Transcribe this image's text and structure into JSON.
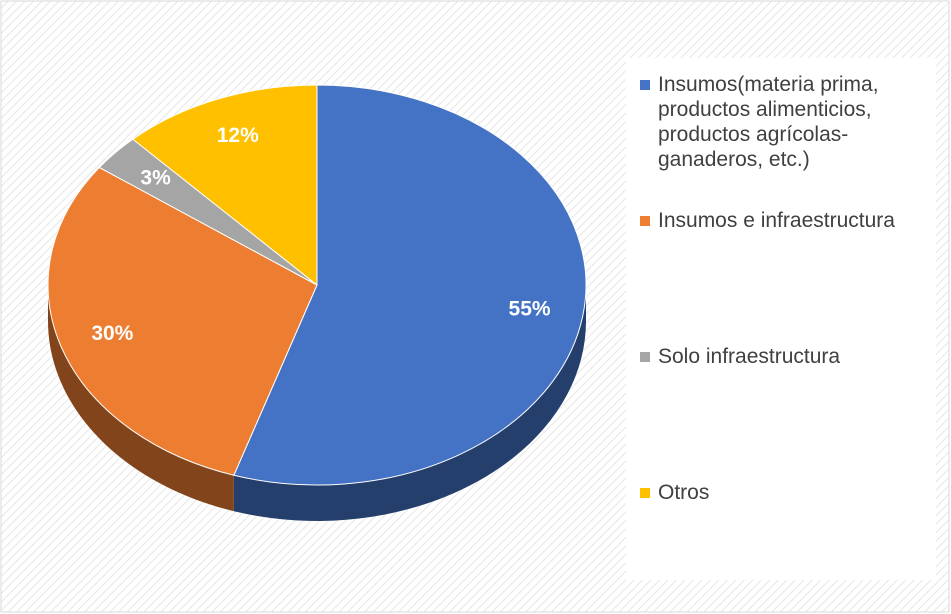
{
  "chart_data": {
    "type": "pie3d",
    "categories": [
      "Insumos(materia prima, productos alimenticios, productos agrícolas-ganaderos, etc.)",
      "Insumos e infraestructura",
      "Solo infraestructura",
      "Otros"
    ],
    "values": [
      55,
      30,
      3,
      12
    ],
    "value_labels": [
      "55%",
      "30%",
      "3%",
      "12%"
    ],
    "colors": [
      "#4472c4",
      "#ed7d31",
      "#a5a5a5",
      "#ffc000"
    ],
    "legend": "right"
  }
}
